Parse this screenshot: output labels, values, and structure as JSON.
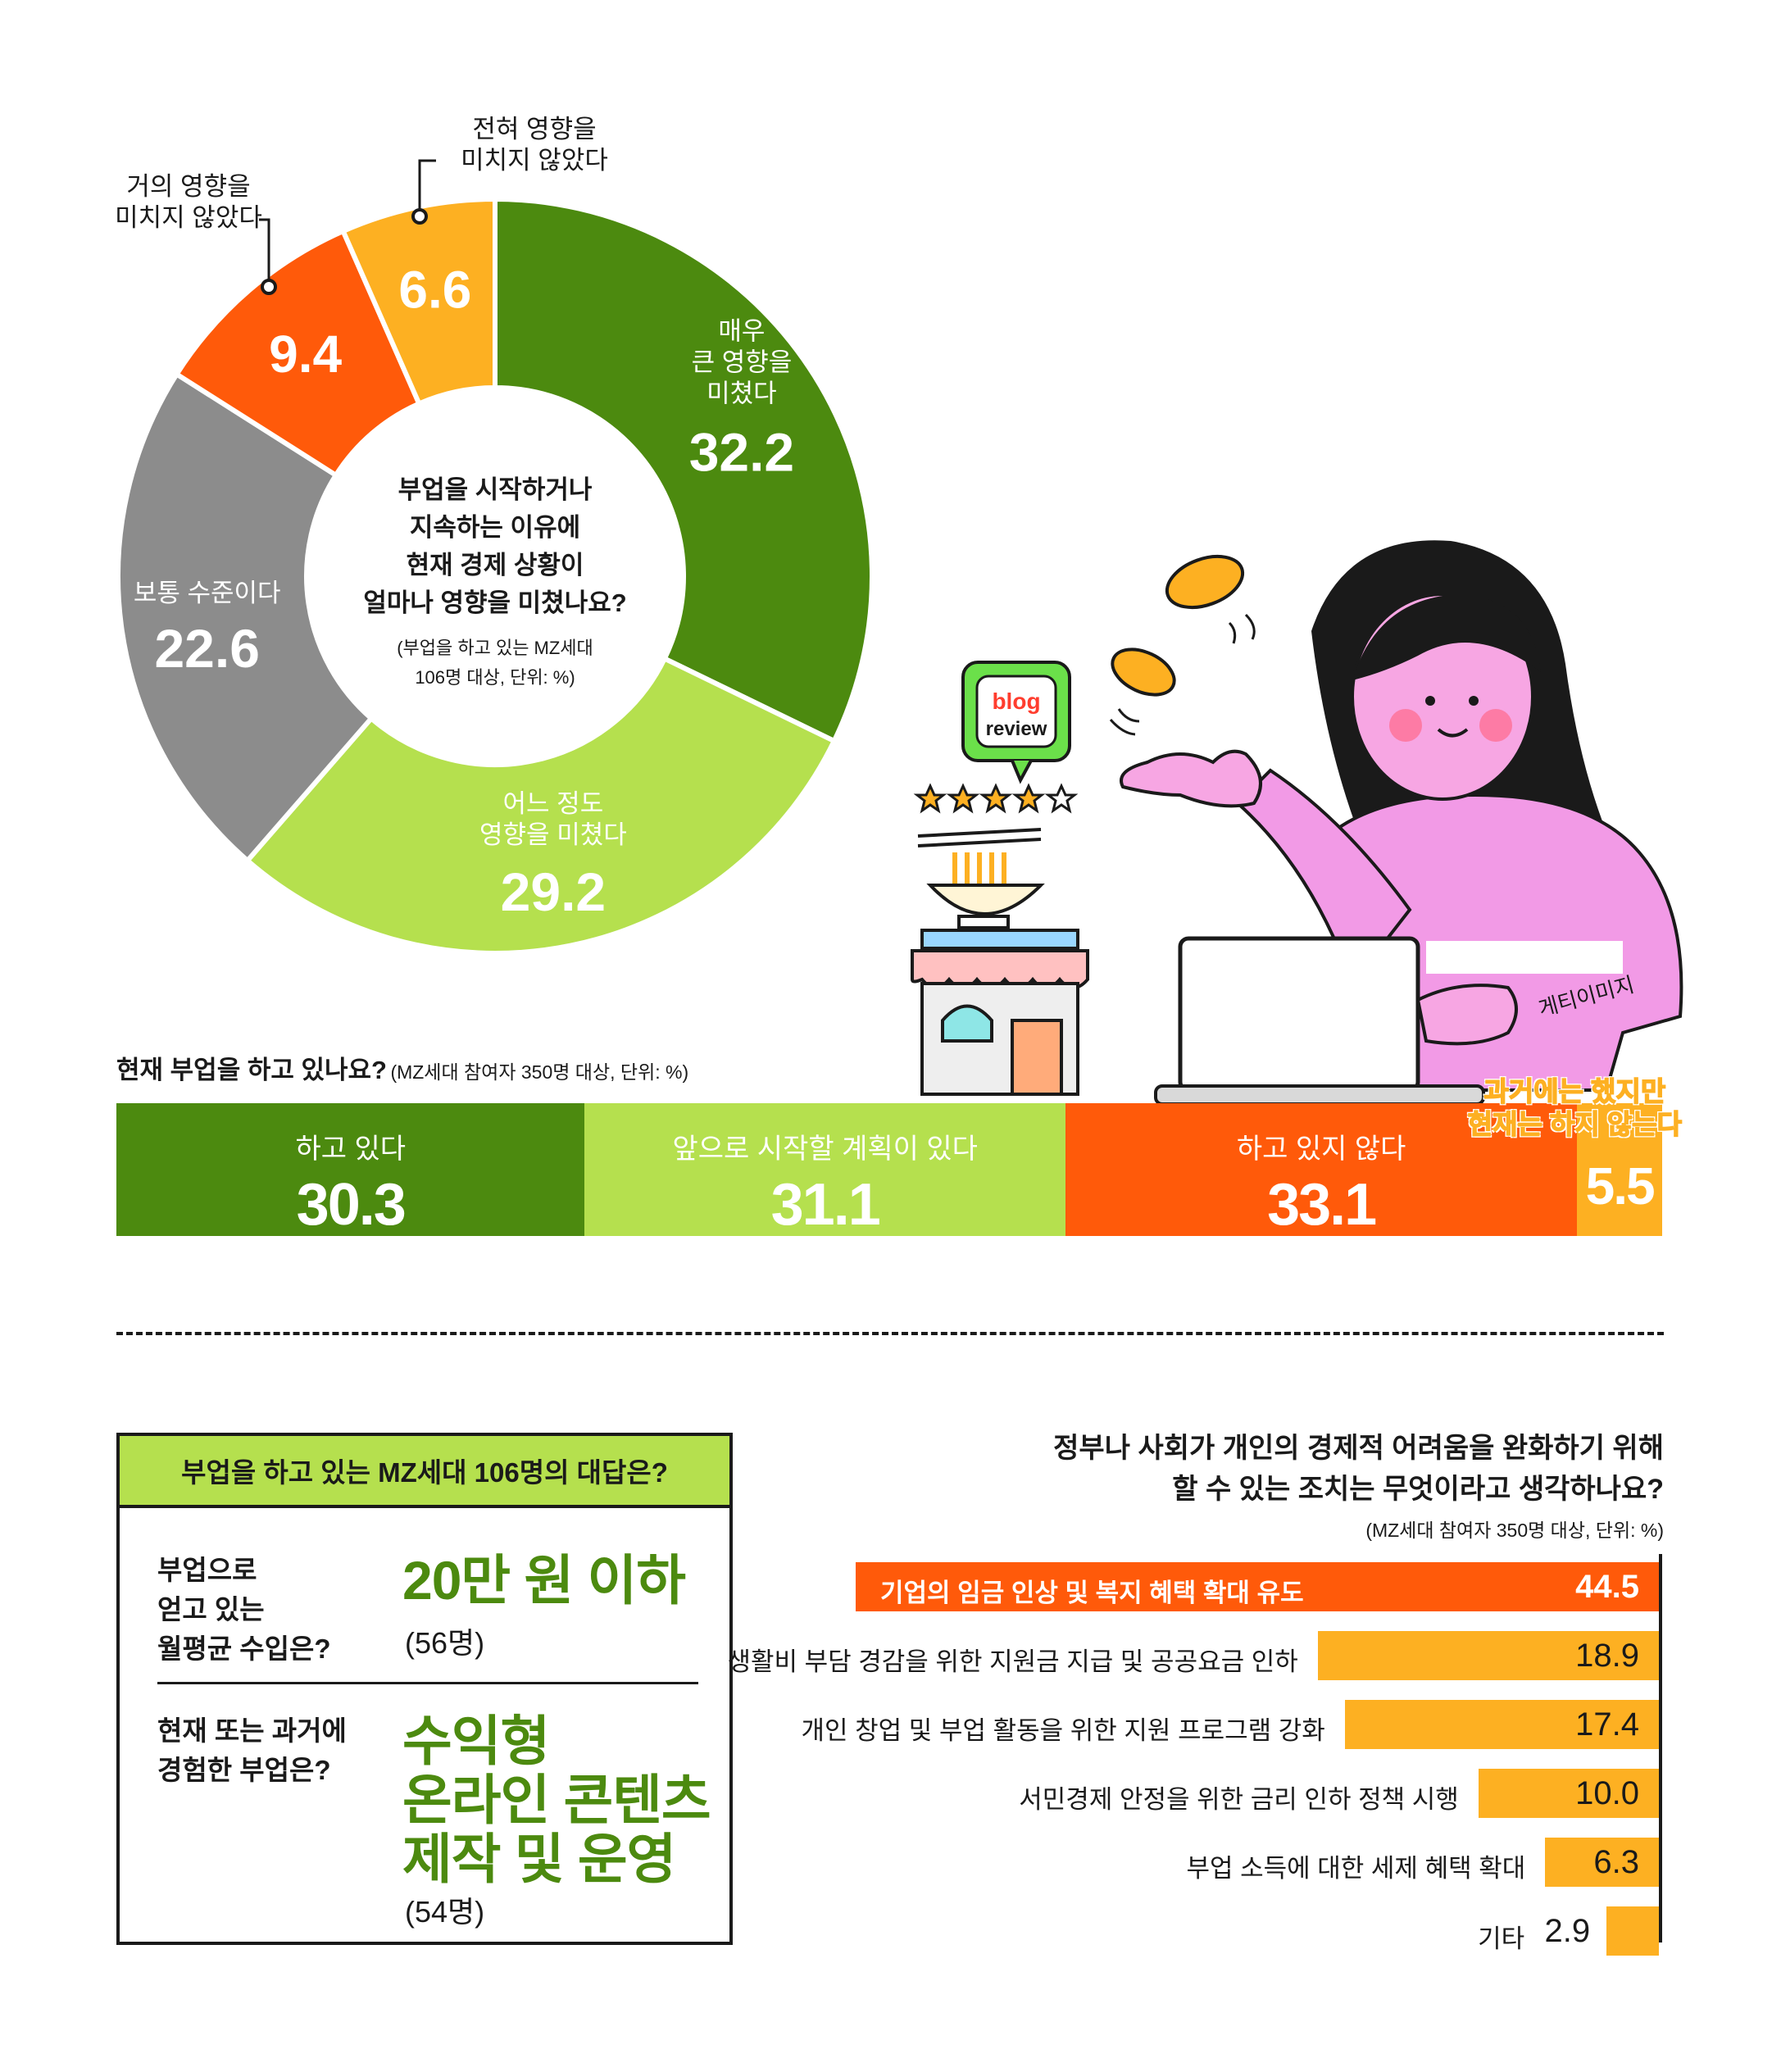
{
  "colors": {
    "dark_green": "#4c8a0f",
    "light_green": "#b5e04e",
    "gray": "#8c8c8c",
    "orange_red": "#ff5a0a",
    "amber": "#fdb022",
    "black": "#1a1a1a"
  },
  "donut": {
    "center_question": "부업을 시작하거나\n지속하는 이유에\n현재 경제 상황이\n얼마나 영향을 미쳤나요?",
    "center_note": "(부업을 하고 있는 MZ세대\n106명 대상, 단위: %)"
  },
  "stacked": {
    "title": "현재 부업을 하고 있나요?",
    "note": "(MZ세대 참여자 350명 대상, 단위: %)"
  },
  "answers": {
    "header": "부업을 하고 있는 MZ세대 106명의 대답은?",
    "q1": "부업으로\n얻고 있는\n월평균 수입은?",
    "a1": "20만 원 이하",
    "c1": "(56명)",
    "q2": "현재 또는 과거에\n경험한 부업은?",
    "a2": "수익형\n온라인 콘텐츠\n제작 및 운영",
    "c2": "(54명)"
  },
  "measures": {
    "title": "정부나 사회가 개인의 경제적 어려움을 완화하기 위해\n할 수 있는 조치는 무엇이라고 생각하나요?",
    "note": "(MZ세대 참여자 350명 대상, 단위: %)"
  },
  "illustration": {
    "icon": "woman-at-laptop-with-coins-and-shop",
    "blog_word1": "blog",
    "blog_word2": "review",
    "credit": "게티이미지"
  },
  "chart_data": [
    {
      "type": "pie",
      "variant": "donut",
      "categories": [
        "매우 큰 영향을 미쳤다",
        "어느 정도 영향을 미쳤다",
        "보통 수준이다",
        "거의 영향을 미치지 않았다",
        "전혀 영향을 미치지 않았다"
      ],
      "display_labels": [
        "매우\n큰 영향을\n미쳤다",
        "어느 정도\n영향을 미쳤다",
        "보통 수준이다",
        "거의 영향을\n미치지 않았다",
        "전혀 영향을\n미치지 않았다"
      ],
      "values": [
        32.2,
        29.2,
        22.6,
        9.4,
        6.6
      ],
      "value_labels": [
        "32.2",
        "29.2",
        "22.6",
        "9.4",
        "6.6"
      ],
      "colors": [
        "#4c8a0f",
        "#b5e04e",
        "#8c8c8c",
        "#ff5a0a",
        "#fdb022"
      ]
    },
    {
      "type": "bar",
      "variant": "stacked-horizontal-100",
      "categories": [
        "하고 있다",
        "앞으로 시작할 계획이 있다",
        "하고 있지 않다",
        "과거에는 했지만\n현재는 하지 않는다"
      ],
      "values": [
        30.3,
        31.1,
        33.1,
        5.5
      ],
      "value_labels": [
        "30.3",
        "31.1",
        "33.1",
        "5.5"
      ],
      "colors": [
        "#4c8a0f",
        "#b5e04e",
        "#ff5a0a",
        "#fdb022"
      ]
    },
    {
      "type": "bar",
      "variant": "horizontal",
      "categories": [
        "기업의 임금 인상 및 복지 혜택 확대 유도",
        "생활비 부담 경감을 위한 지원금 지급 및 공공요금 인하",
        "개인 창업 및 부업 활동을 위한 지원 프로그램 강화",
        "서민경제 안정을 위한 금리 인하 정책 시행",
        "부업 소득에 대한 세제 혜택 확대",
        "기타"
      ],
      "values": [
        44.5,
        18.9,
        17.4,
        10.0,
        6.3,
        2.9
      ],
      "value_labels": [
        "44.5",
        "18.9",
        "17.4",
        "10.0",
        "6.3",
        "2.9"
      ],
      "colors": [
        "#ff5a0a",
        "#fdb022",
        "#fdb022",
        "#fdb022",
        "#fdb022",
        "#fdb022"
      ]
    }
  ]
}
